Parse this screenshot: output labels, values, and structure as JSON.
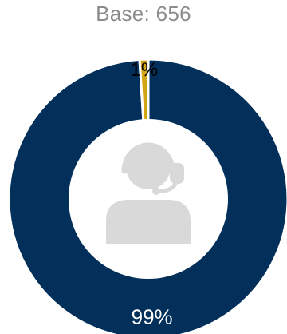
{
  "subtitle": "Base: 656",
  "icon": "customer-support-headset-icon",
  "colors": {
    "primary": "#03305a",
    "secondary": "#d2a514",
    "icon": "#d9d9d9",
    "inner": "#ffffff",
    "separator": "#ffffff"
  },
  "chart_data": {
    "type": "pie",
    "donut": true,
    "categories": [
      "",
      ""
    ],
    "values": [
      99,
      1
    ],
    "data_labels": [
      "99%",
      "1%"
    ],
    "colors": [
      "#03305a",
      "#d2a514"
    ],
    "title": "",
    "subtitle": "Base: 656",
    "legend": "none"
  }
}
